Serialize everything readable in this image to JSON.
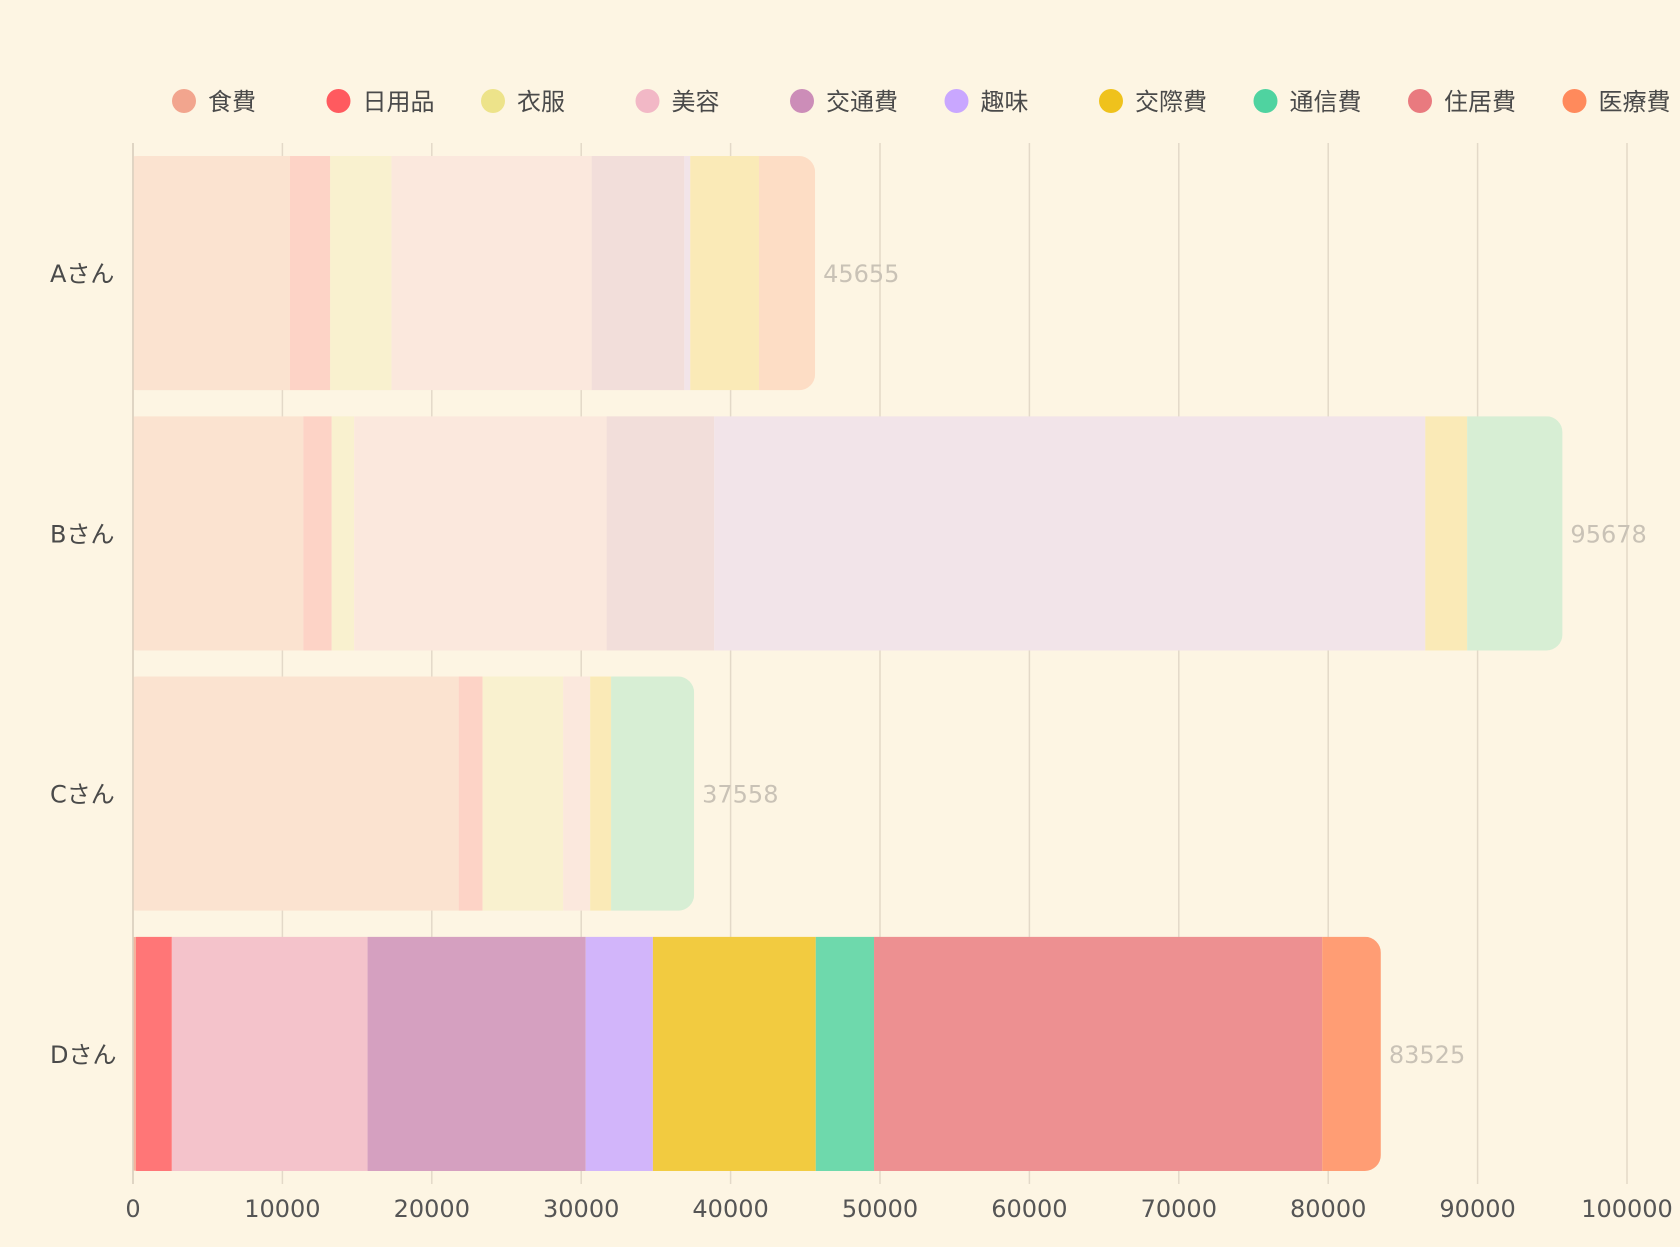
{
  "chart_data": {
    "type": "bar",
    "orientation": "horizontal",
    "stacked": true,
    "title": "",
    "xlabel": "",
    "ylabel": "",
    "xlim": [
      0,
      100000
    ],
    "xticks": [
      0,
      10000,
      20000,
      30000,
      40000,
      50000,
      60000,
      70000,
      80000,
      90000,
      100000
    ],
    "grid": true,
    "legend_position": "top",
    "categories": [
      "Aさん",
      "Bさん",
      "Cさん",
      "Dさん"
    ],
    "totals": [
      45655,
      95678,
      37558,
      83525
    ],
    "highlighted_category": "Dさん",
    "series": [
      {
        "name": "食費",
        "color": "#f2a58e",
        "values": [
          10500,
          11400,
          21800,
          200
        ]
      },
      {
        "name": "日用品",
        "color": "#ff5a5f",
        "values": [
          2700,
          1900,
          1600,
          2400
        ]
      },
      {
        "name": "衣服",
        "color": "#ede38a",
        "values": [
          4100,
          1500,
          5400,
          0
        ]
      },
      {
        "name": "美容",
        "color": "#f2b8c6",
        "values": [
          13400,
          16900,
          1800,
          13100
        ]
      },
      {
        "name": "交通費",
        "color": "#cc8db8",
        "values": [
          6200,
          7200,
          0,
          14600
        ]
      },
      {
        "name": "趣味",
        "color": "#c9a7ff",
        "values": [
          400,
          47600,
          0,
          4500
        ]
      },
      {
        "name": "交際費",
        "color": "#efc21c",
        "values": [
          4600,
          2800,
          1400,
          10900
        ]
      },
      {
        "name": "通信費",
        "color": "#4fd3a0",
        "values": [
          0,
          6378,
          5558,
          3900
        ]
      },
      {
        "name": "住居費",
        "color": "#e97a7f",
        "values": [
          0,
          0,
          0,
          30000
        ]
      },
      {
        "name": "医療費",
        "color": "#ff8a5c",
        "values": [
          3755,
          0,
          0,
          3925
        ]
      }
    ]
  }
}
